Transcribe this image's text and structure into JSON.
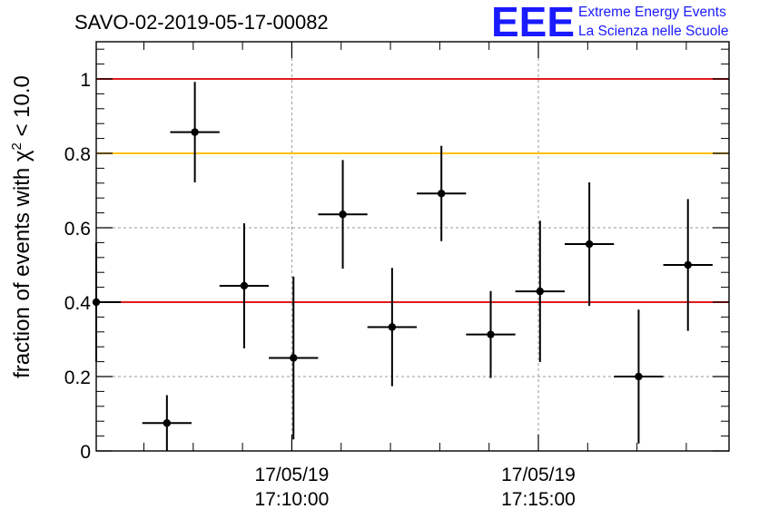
{
  "header": {
    "run_title": "SAVO-02-2019-05-17-00082"
  },
  "logo": {
    "mark": "EEE",
    "line1": "Extreme Energy Events",
    "line2": "La Scienza nelle Scuole",
    "color": "#1a1aff"
  },
  "chart_data": {
    "type": "scatter",
    "ylabel_prefix": "fraction of events with χ",
    "ylabel_sup": "2",
    "ylabel_suffix": " < 10.0",
    "ylim": [
      0,
      1.1
    ],
    "yticks": [
      {
        "value": 0,
        "label": "0"
      },
      {
        "value": 0.2,
        "label": "0.2"
      },
      {
        "value": 0.4,
        "label": "0.4"
      },
      {
        "value": 0.6,
        "label": "0.6"
      },
      {
        "value": 0.8,
        "label": "0.8"
      },
      {
        "value": 1,
        "label": "1"
      }
    ],
    "xlim": [
      "17:06:02",
      "17:18:52"
    ],
    "xticks": [
      {
        "time": "17:10:00",
        "date": "17/05/19",
        "label": "17:10:00"
      },
      {
        "time": "17:15:00",
        "date": "17/05/19",
        "label": "17:15:00"
      }
    ],
    "x_minor_step_min": 1,
    "grid": true,
    "reference_lines": [
      {
        "y": 1.0,
        "color": "#e31a1c"
      },
      {
        "y": 0.8,
        "color": "#ffc000"
      },
      {
        "y": 0.4,
        "color": "#e31a1c"
      }
    ],
    "series": [
      {
        "points": [
          {
            "t": "17:06:02",
            "y": 0.4,
            "err": 0.16
          },
          {
            "t": "17:07:28",
            "y": 0.075,
            "err": 0.075
          },
          {
            "t": "17:08:02",
            "y": 0.857,
            "err": 0.135
          },
          {
            "t": "17:09:02",
            "y": 0.444,
            "err": 0.168
          },
          {
            "t": "17:10:02",
            "y": 0.25,
            "err": 0.219
          },
          {
            "t": "17:11:02",
            "y": 0.636,
            "err": 0.146
          },
          {
            "t": "17:12:02",
            "y": 0.333,
            "err": 0.159
          },
          {
            "t": "17:13:02",
            "y": 0.692,
            "err": 0.128
          },
          {
            "t": "17:14:02",
            "y": 0.313,
            "err": 0.117
          },
          {
            "t": "17:15:02",
            "y": 0.429,
            "err": 0.19
          },
          {
            "t": "17:16:02",
            "y": 0.556,
            "err": 0.166
          },
          {
            "t": "17:17:02",
            "y": 0.2,
            "err": 0.18
          },
          {
            "t": "17:18:02",
            "y": 0.5,
            "err": 0.177
          }
        ],
        "x_half_width_min": 0.5,
        "color": "#000000"
      }
    ]
  }
}
